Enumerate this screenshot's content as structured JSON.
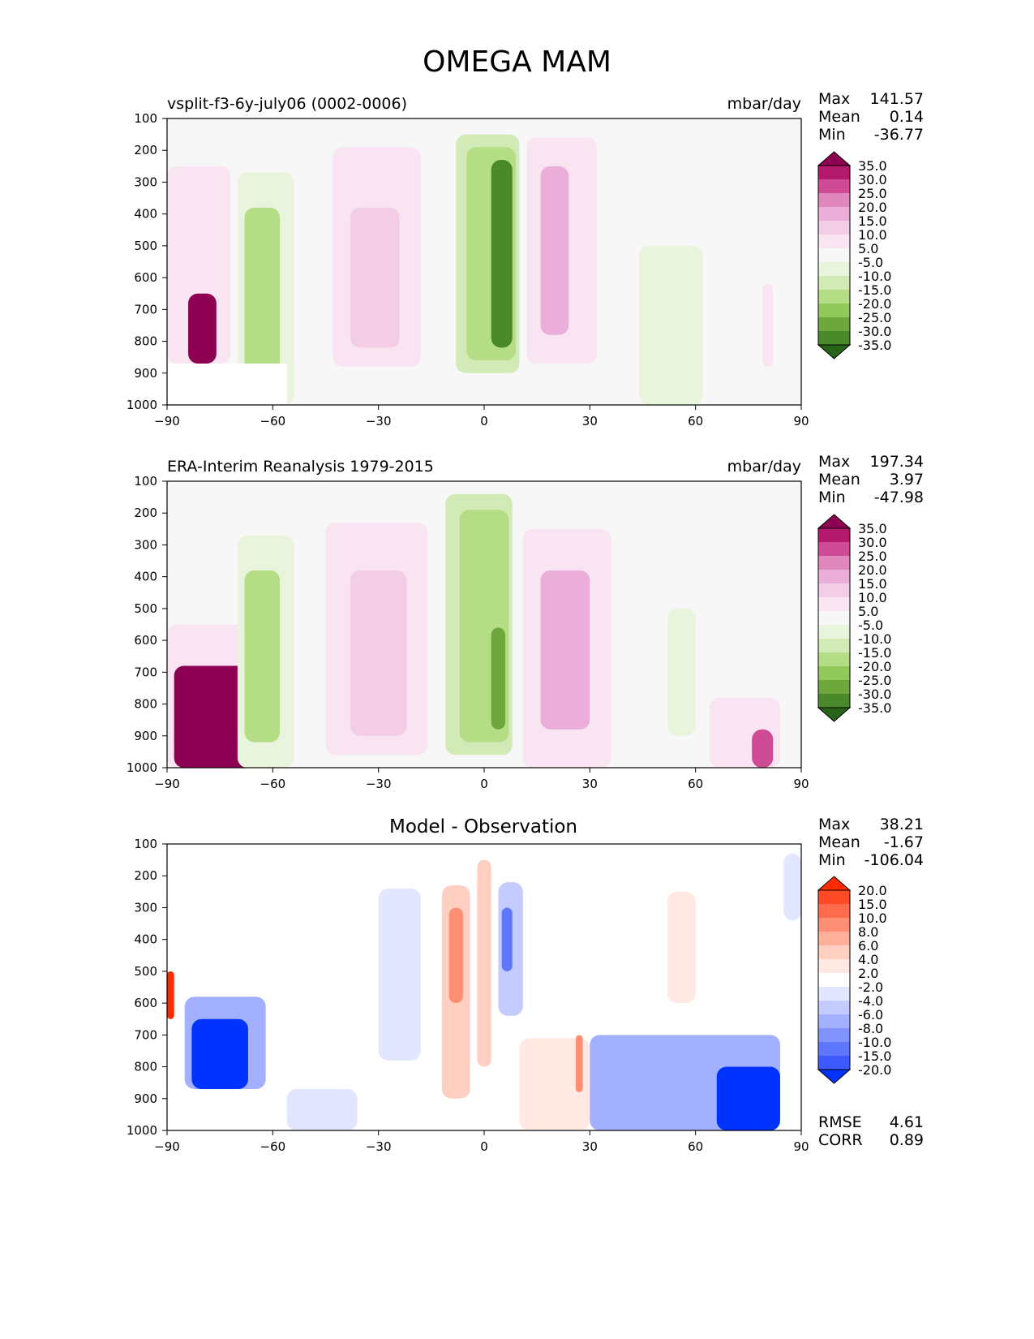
{
  "suptitle": "OMEGA MAM",
  "panels": [
    {
      "title": "vsplit-f3-6y-july06 (0002-0006)",
      "units": "mbar/day",
      "stats": [
        {
          "label": "Max",
          "value": "141.57"
        },
        {
          "label": "Mean",
          "value": "0.14"
        },
        {
          "label": "Min",
          "value": "-36.77"
        }
      ]
    },
    {
      "title": "ERA-Interim Reanalysis 1979-2015",
      "units": "mbar/day",
      "stats": [
        {
          "label": "Max",
          "value": "197.34"
        },
        {
          "label": "Mean",
          "value": "3.97"
        },
        {
          "label": "Min",
          "value": "-47.98"
        }
      ]
    },
    {
      "title": "Model - Observation",
      "units": "",
      "stats": [
        {
          "label": "Max",
          "value": "38.21"
        },
        {
          "label": "Mean",
          "value": "-1.67"
        },
        {
          "label": "Min",
          "value": "-106.04"
        }
      ],
      "extra_stats": [
        {
          "label": "RMSE",
          "value": "4.61"
        },
        {
          "label": "CORR",
          "value": "0.89"
        }
      ]
    }
  ],
  "chart_data": [
    {
      "type": "heatmap",
      "title": "vsplit-f3-6y-july06 (0002-0006)",
      "xlim": [
        -90,
        90
      ],
      "ylim": [
        1000,
        100
      ],
      "x_ticks": [
        "−90",
        "−60",
        "−30",
        "0",
        "30",
        "60",
        "90"
      ],
      "y_ticks": [
        "100",
        "200",
        "300",
        "400",
        "500",
        "600",
        "700",
        "800",
        "900",
        "1000"
      ],
      "colorbar": {
        "labels": [
          "35.0",
          "30.0",
          "25.0",
          "20.0",
          "15.0",
          "10.0",
          "5.0",
          "-5.0",
          "-10.0",
          "-15.0",
          "-20.0",
          "-25.0",
          "-30.0",
          "-35.0"
        ],
        "colors": [
          "#8e0152",
          "#b41a6c",
          "#cf4b95",
          "#e087be",
          "#ebaed8",
          "#f3cde6",
          "#f9e5f1",
          "#f7f7f7",
          "#e8f4dc",
          "#d2ebb6",
          "#b5dd86",
          "#91c95a",
          "#6ea83d",
          "#4a8a2a",
          "#276419"
        ]
      },
      "features": [
        {
          "lat": [
            -90,
            -72
          ],
          "p": [
            250,
            870
          ],
          "value": 8
        },
        {
          "lat": [
            -84,
            -76
          ],
          "p": [
            650,
            870
          ],
          "value": 40
        },
        {
          "lat": [
            -70,
            -54
          ],
          "p": [
            270,
            1000
          ],
          "value": -10
        },
        {
          "lat": [
            -68,
            -58
          ],
          "p": [
            380,
            900
          ],
          "value": -18
        },
        {
          "lat": [
            -43,
            -18
          ],
          "p": [
            190,
            880
          ],
          "value": 7
        },
        {
          "lat": [
            -38,
            -24
          ],
          "p": [
            380,
            820
          ],
          "value": 12
        },
        {
          "lat": [
            -8,
            10
          ],
          "p": [
            150,
            900
          ],
          "value": -12
        },
        {
          "lat": [
            -5,
            9
          ],
          "p": [
            190,
            860
          ],
          "value": -20
        },
        {
          "lat": [
            2,
            8
          ],
          "p": [
            230,
            820
          ],
          "value": -35
        },
        {
          "lat": [
            12,
            32
          ],
          "p": [
            160,
            870
          ],
          "value": 8
        },
        {
          "lat": [
            16,
            24
          ],
          "p": [
            250,
            780
          ],
          "value": 17
        },
        {
          "lat": [
            44,
            62
          ],
          "p": [
            500,
            1000
          ],
          "value": -6
        },
        {
          "lat": [
            79,
            82
          ],
          "p": [
            620,
            880
          ],
          "value": 5
        }
      ]
    },
    {
      "type": "heatmap",
      "title": "ERA-Interim Reanalysis 1979-2015",
      "xlim": [
        -90,
        90
      ],
      "ylim": [
        1000,
        100
      ],
      "x_ticks": [
        "−90",
        "−60",
        "−30",
        "0",
        "30",
        "60",
        "90"
      ],
      "y_ticks": [
        "100",
        "200",
        "300",
        "400",
        "500",
        "600",
        "700",
        "800",
        "900",
        "1000"
      ],
      "colorbar": {
        "labels": [
          "35.0",
          "30.0",
          "25.0",
          "20.0",
          "15.0",
          "10.0",
          "5.0",
          "-5.0",
          "-10.0",
          "-15.0",
          "-20.0",
          "-25.0",
          "-30.0",
          "-35.0"
        ],
        "colors": [
          "#8e0152",
          "#b41a6c",
          "#cf4b95",
          "#e087be",
          "#ebaed8",
          "#f3cde6",
          "#f9e5f1",
          "#f7f7f7",
          "#e8f4dc",
          "#d2ebb6",
          "#b5dd86",
          "#91c95a",
          "#6ea83d",
          "#4a8a2a",
          "#276419"
        ]
      },
      "features": [
        {
          "lat": [
            -90,
            -66
          ],
          "p": [
            550,
            1000
          ],
          "value": 8
        },
        {
          "lat": [
            -88,
            -66
          ],
          "p": [
            680,
            1000
          ],
          "value": 40
        },
        {
          "lat": [
            -70,
            -54
          ],
          "p": [
            270,
            1000
          ],
          "value": -10
        },
        {
          "lat": [
            -68,
            -58
          ],
          "p": [
            380,
            920
          ],
          "value": -18
        },
        {
          "lat": [
            -45,
            -16
          ],
          "p": [
            230,
            960
          ],
          "value": 7
        },
        {
          "lat": [
            -38,
            -22
          ],
          "p": [
            380,
            900
          ],
          "value": 12
        },
        {
          "lat": [
            -11,
            8
          ],
          "p": [
            140,
            960
          ],
          "value": -12
        },
        {
          "lat": [
            -7,
            7
          ],
          "p": [
            190,
            920
          ],
          "value": -20
        },
        {
          "lat": [
            2,
            6
          ],
          "p": [
            560,
            880
          ],
          "value": -30
        },
        {
          "lat": [
            11,
            36
          ],
          "p": [
            250,
            1000
          ],
          "value": 8
        },
        {
          "lat": [
            16,
            30
          ],
          "p": [
            380,
            880
          ],
          "value": 17
        },
        {
          "lat": [
            52,
            60
          ],
          "p": [
            500,
            900
          ],
          "value": -6
        },
        {
          "lat": [
            64,
            84
          ],
          "p": [
            780,
            1000
          ],
          "value": 8
        },
        {
          "lat": [
            76,
            82
          ],
          "p": [
            880,
            1000
          ],
          "value": 25
        }
      ]
    },
    {
      "type": "heatmap",
      "title": "Model - Observation",
      "xlim": [
        -90,
        90
      ],
      "ylim": [
        1000,
        100
      ],
      "x_ticks": [
        "−90",
        "−60",
        "−30",
        "0",
        "30",
        "60",
        "90"
      ],
      "y_ticks": [
        "100",
        "200",
        "300",
        "400",
        "500",
        "600",
        "700",
        "800",
        "900",
        "1000"
      ],
      "colorbar": {
        "labels": [
          "20.0",
          "15.0",
          "10.0",
          "8.0",
          "6.0",
          "4.0",
          "2.0",
          "-2.0",
          "-4.0",
          "-6.0",
          "-8.0",
          "-10.0",
          "-15.0",
          "-20.0"
        ],
        "colors": [
          "#ff2a00",
          "#ff4a26",
          "#ff6b4d",
          "#ff8f74",
          "#ffb09a",
          "#ffd0c2",
          "#ffe9e2",
          "#ffffff",
          "#e2e6ff",
          "#c4ccff",
          "#a3b0ff",
          "#8193ff",
          "#5f77ff",
          "#3c5aff",
          "#0033ff"
        ]
      },
      "features": [
        {
          "lat": [
            -85,
            -62
          ],
          "p": [
            580,
            870
          ],
          "value": -7
        },
        {
          "lat": [
            -83,
            -67
          ],
          "p": [
            650,
            870
          ],
          "value": -25
        },
        {
          "lat": [
            -56,
            -36
          ],
          "p": [
            870,
            1000
          ],
          "value": -4
        },
        {
          "lat": [
            -30,
            -18
          ],
          "p": [
            240,
            780
          ],
          "value": -4
        },
        {
          "lat": [
            -12,
            -4
          ],
          "p": [
            230,
            900
          ],
          "value": 5
        },
        {
          "lat": [
            -10,
            -6
          ],
          "p": [
            300,
            600
          ],
          "value": 9
        },
        {
          "lat": [
            -2,
            2
          ],
          "p": [
            150,
            800
          ],
          "value": 5
        },
        {
          "lat": [
            4,
            11
          ],
          "p": [
            220,
            640
          ],
          "value": -6
        },
        {
          "lat": [
            5,
            8
          ],
          "p": [
            300,
            500
          ],
          "value": -12
        },
        {
          "lat": [
            10,
            30
          ],
          "p": [
            710,
            1000
          ],
          "value": 3
        },
        {
          "lat": [
            26,
            28
          ],
          "p": [
            700,
            880
          ],
          "value": 9
        },
        {
          "lat": [
            30,
            84
          ],
          "p": [
            700,
            1000
          ],
          "value": -7
        },
        {
          "lat": [
            66,
            84
          ],
          "p": [
            800,
            1000
          ],
          "value": -25
        },
        {
          "lat": [
            52,
            60
          ],
          "p": [
            250,
            600
          ],
          "value": 3
        },
        {
          "lat": [
            -90,
            -88
          ],
          "p": [
            500,
            650
          ],
          "value": 25
        },
        {
          "lat": [
            85,
            90
          ],
          "p": [
            130,
            340
          ],
          "value": -4
        }
      ]
    }
  ]
}
